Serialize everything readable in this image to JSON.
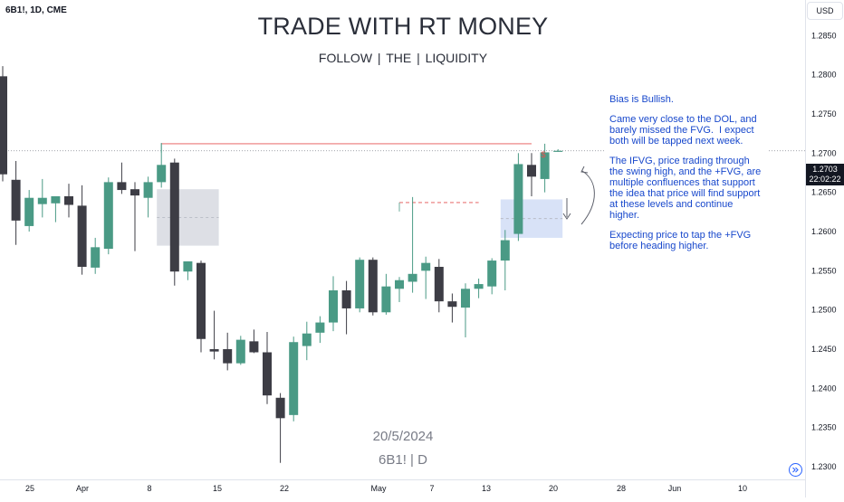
{
  "header": {
    "symbol": "6B1!, 1D, CME",
    "title": "TRADE WITH RT MONEY",
    "subtitle": "FOLLOW  | THE |  LIQUIDITY"
  },
  "watermark": {
    "date": "20/5/2024",
    "symbol": "6B1! | D"
  },
  "price_axis": {
    "currency": "USD",
    "last_price": "1.2703",
    "countdown": "22:02:22"
  },
  "note": {
    "paragraphs": [
      "Bias is Bullish.",
      "Came very close to the DOL, and barely missed the FVG.  I expect both will be tapped next week.",
      "The IFVG, price trading through the swing high, and the +FVG, are multiple confluences that support the idea that price will find support at these levels and continue higher.",
      "Expecting price to tap the +FVG before heading higher."
    ]
  },
  "annotations": {
    "liquidity_marker": "$"
  },
  "colors": {
    "up": "#4a9a85",
    "down": "#3d3d45",
    "note_text": "#1848cc",
    "grey_zone": "#d1d4dc",
    "blue_zone": "#c8d6f4",
    "liquidity_line": "#e45050",
    "axis_text": "#131722"
  },
  "icons": {
    "goto_realtime": "goto-realtime-icon",
    "down_arrow": "down-arrow-icon",
    "curved_arrow": "curved-arrow-icon"
  },
  "chart_data": {
    "type": "candlestick",
    "timeframe": "1D",
    "x_ticks": [
      "25",
      "Apr",
      "8",
      "15",
      "22",
      "May",
      "7",
      "13",
      "20",
      "28",
      "Jun",
      "10"
    ],
    "y_ticks": [
      1.23,
      1.235,
      1.24,
      1.245,
      1.25,
      1.255,
      1.26,
      1.265,
      1.27,
      1.275,
      1.28,
      1.285
    ],
    "y_tick_labels": [
      "1.2300",
      "1.2350",
      "1.2400",
      "1.2450",
      "1.2500",
      "1.2550",
      "1.2600",
      "1.2650",
      "1.2700",
      "1.2750",
      "1.2800",
      "1.2850"
    ],
    "ylim": [
      1.2292,
      1.2878
    ],
    "candles": [
      {
        "o": 1.2798,
        "h": 1.2811,
        "l": 1.2664,
        "c": 1.2673
      },
      {
        "o": 1.2666,
        "h": 1.269,
        "l": 1.2583,
        "c": 1.2614
      },
      {
        "o": 1.2607,
        "h": 1.2653,
        "l": 1.26,
        "c": 1.2643
      },
      {
        "o": 1.2635,
        "h": 1.2667,
        "l": 1.2618,
        "c": 1.2643
      },
      {
        "o": 1.2636,
        "h": 1.2644,
        "l": 1.2612,
        "c": 1.2645
      },
      {
        "o": 1.2645,
        "h": 1.2661,
        "l": 1.2618,
        "c": 1.2634
      },
      {
        "o": 1.2633,
        "h": 1.2659,
        "l": 1.2545,
        "c": 1.2555
      },
      {
        "o": 1.2554,
        "h": 1.2592,
        "l": 1.2546,
        "c": 1.258
      },
      {
        "o": 1.2578,
        "h": 1.2669,
        "l": 1.2571,
        "c": 1.2663
      },
      {
        "o": 1.2663,
        "h": 1.2688,
        "l": 1.2648,
        "c": 1.2653
      },
      {
        "o": 1.2654,
        "h": 1.2663,
        "l": 1.2575,
        "c": 1.2646
      },
      {
        "o": 1.2643,
        "h": 1.267,
        "l": 1.2618,
        "c": 1.2663
      },
      {
        "o": 1.2663,
        "h": 1.2713,
        "l": 1.2656,
        "c": 1.2685
      },
      {
        "o": 1.2688,
        "h": 1.2693,
        "l": 1.2531,
        "c": 1.2549
      },
      {
        "o": 1.2549,
        "h": 1.2562,
        "l": 1.2538,
        "c": 1.2562
      },
      {
        "o": 1.256,
        "h": 1.2563,
        "l": 1.2446,
        "c": 1.2463
      },
      {
        "o": 1.245,
        "h": 1.2499,
        "l": 1.2437,
        "c": 1.2447
      },
      {
        "o": 1.245,
        "h": 1.2471,
        "l": 1.2423,
        "c": 1.2432
      },
      {
        "o": 1.2432,
        "h": 1.2467,
        "l": 1.243,
        "c": 1.2462
      },
      {
        "o": 1.246,
        "h": 1.2475,
        "l": 1.2445,
        "c": 1.2446
      },
      {
        "o": 1.2446,
        "h": 1.2472,
        "l": 1.238,
        "c": 1.2391
      },
      {
        "o": 1.2388,
        "h": 1.2394,
        "l": 1.2305,
        "c": 1.2362
      },
      {
        "o": 1.2366,
        "h": 1.2466,
        "l": 1.2358,
        "c": 1.2459
      },
      {
        "o": 1.2454,
        "h": 1.2485,
        "l": 1.2436,
        "c": 1.247
      },
      {
        "o": 1.2471,
        "h": 1.2492,
        "l": 1.2458,
        "c": 1.2484
      },
      {
        "o": 1.2484,
        "h": 1.2543,
        "l": 1.2473,
        "c": 1.2525
      },
      {
        "o": 1.2525,
        "h": 1.2537,
        "l": 1.2469,
        "c": 1.2502
      },
      {
        "o": 1.2502,
        "h": 1.2567,
        "l": 1.2497,
        "c": 1.2564
      },
      {
        "o": 1.2564,
        "h": 1.2567,
        "l": 1.2493,
        "c": 1.2497
      },
      {
        "o": 1.2497,
        "h": 1.2546,
        "l": 1.2494,
        "c": 1.253
      },
      {
        "o": 1.2527,
        "h": 1.2542,
        "l": 1.251,
        "c": 1.2538
      },
      {
        "o": 1.2536,
        "h": 1.2644,
        "l": 1.2522,
        "c": 1.2546
      },
      {
        "o": 1.255,
        "h": 1.2568,
        "l": 1.2514,
        "c": 1.256
      },
      {
        "o": 1.2555,
        "h": 1.2565,
        "l": 1.2497,
        "c": 1.2511
      },
      {
        "o": 1.2511,
        "h": 1.2521,
        "l": 1.2484,
        "c": 1.2504
      },
      {
        "o": 1.2503,
        "h": 1.2534,
        "l": 1.2465,
        "c": 1.2527
      },
      {
        "o": 1.2527,
        "h": 1.254,
        "l": 1.2515,
        "c": 1.2533
      },
      {
        "o": 1.253,
        "h": 1.2566,
        "l": 1.252,
        "c": 1.2563
      },
      {
        "o": 1.2563,
        "h": 1.2602,
        "l": 1.2525,
        "c": 1.2589
      },
      {
        "o": 1.2597,
        "h": 1.27,
        "l": 1.2588,
        "c": 1.2686
      },
      {
        "o": 1.2685,
        "h": 1.27,
        "l": 1.2645,
        "c": 1.267
      },
      {
        "o": 1.2667,
        "h": 1.2712,
        "l": 1.265,
        "c": 1.2701
      },
      {
        "o": 1.2703,
        "h": 1.2705,
        "l": 1.2702,
        "c": 1.2703
      }
    ],
    "zones": [
      {
        "name": "IFVG",
        "start_index": 12,
        "end_index": 16,
        "y_low": 1.2582,
        "y_high": 1.2654
      },
      {
        "name": "+FVG",
        "start_index": 38,
        "end_index": 42,
        "y_low": 1.2592,
        "y_high": 1.2641
      }
    ],
    "levels": [
      {
        "name": "swing-high",
        "price": 1.2712,
        "start_index": 12,
        "end_index": 40,
        "style": "solid"
      },
      {
        "name": "swing-high-lower",
        "price": 1.2637,
        "start_index": 30,
        "end_index": 36,
        "style": "dashed"
      }
    ],
    "last_price": 1.2703,
    "grid": false
  }
}
